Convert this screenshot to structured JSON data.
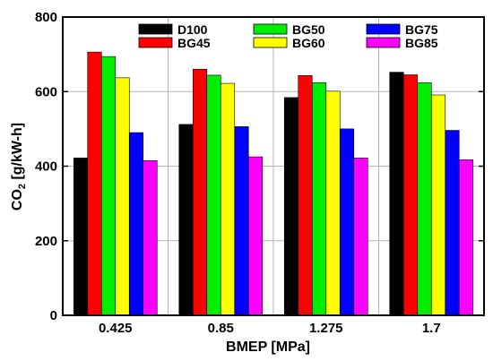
{
  "chart_data": {
    "type": "bar",
    "xlabel": "BMEP [MPa]",
    "ylabel_main": "CO",
    "ylabel_sub": "2",
    "ylabel_unit": " [g/kW-h]",
    "categories": [
      "0.425",
      "0.85",
      "1.275",
      "1.7"
    ],
    "ylim": [
      0,
      800
    ],
    "yticks": [
      "0",
      "200",
      "400",
      "600",
      "800"
    ],
    "grid": true,
    "legend_position": "top",
    "series": [
      {
        "name": "D100",
        "color": "#000000",
        "values": [
          422,
          512,
          584,
          652
        ]
      },
      {
        "name": "BG45",
        "color": "#ff0000",
        "values": [
          706,
          660,
          643,
          645
        ]
      },
      {
        "name": "BG50",
        "color": "#00ee00",
        "values": [
          694,
          644,
          624,
          624
        ]
      },
      {
        "name": "BG60",
        "color": "#ffff00",
        "values": [
          637,
          622,
          601,
          591
        ]
      },
      {
        "name": "BG75",
        "color": "#0000ff",
        "values": [
          490,
          506,
          500,
          496
        ]
      },
      {
        "name": "BG85",
        "color": "#ff00ff",
        "values": [
          415,
          425,
          422,
          417
        ]
      }
    ]
  }
}
